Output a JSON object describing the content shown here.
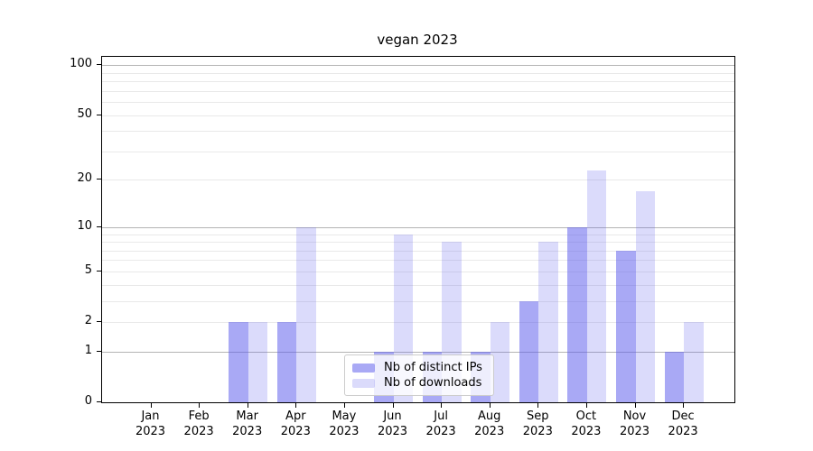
{
  "chart_data": {
    "type": "bar",
    "title": "vegan 2023",
    "xlabel": "",
    "ylabel": "",
    "categories": [
      "Jan 2023",
      "Feb 2023",
      "Mar 2023",
      "Apr 2023",
      "May 2023",
      "Jun 2023",
      "Jul 2023",
      "Aug 2023",
      "Sep 2023",
      "Oct 2023",
      "Nov 2023",
      "Dec 2023"
    ],
    "category_months": [
      "Jan",
      "Feb",
      "Mar",
      "Apr",
      "May",
      "Jun",
      "Jul",
      "Aug",
      "Sep",
      "Oct",
      "Nov",
      "Dec"
    ],
    "category_year": "2023",
    "series": [
      {
        "name": "Nb of distinct IPs",
        "color": "rgba(90,90,235,0.52)",
        "values": [
          0,
          0,
          2,
          2,
          0,
          1,
          1,
          1,
          3,
          10,
          7,
          1
        ]
      },
      {
        "name": "Nb of downloads",
        "color": "rgba(90,90,235,0.22)",
        "values": [
          0,
          0,
          2,
          10,
          0,
          9,
          8,
          2,
          8,
          23,
          17,
          2
        ]
      }
    ],
    "yscale": "log1p",
    "ylim": [
      0,
      112
    ],
    "yticks": [
      0,
      1,
      2,
      5,
      10,
      20,
      50,
      100
    ],
    "major_gridlines": [
      1,
      10,
      100
    ],
    "minor_gridlines": [
      2,
      3,
      4,
      5,
      6,
      7,
      8,
      9,
      20,
      30,
      40,
      50,
      60,
      70,
      80,
      90
    ],
    "grid": "on",
    "legend_position": "lower center",
    "colors": {
      "bar_ips": "rgba(90,90,235,0.52)",
      "bar_downloads": "rgba(90,90,235,0.22)",
      "major_grid": "#b4b4b4",
      "minor_grid": "#e9e9e9",
      "axis": "#000000",
      "legend_border": "#cccccc"
    }
  }
}
